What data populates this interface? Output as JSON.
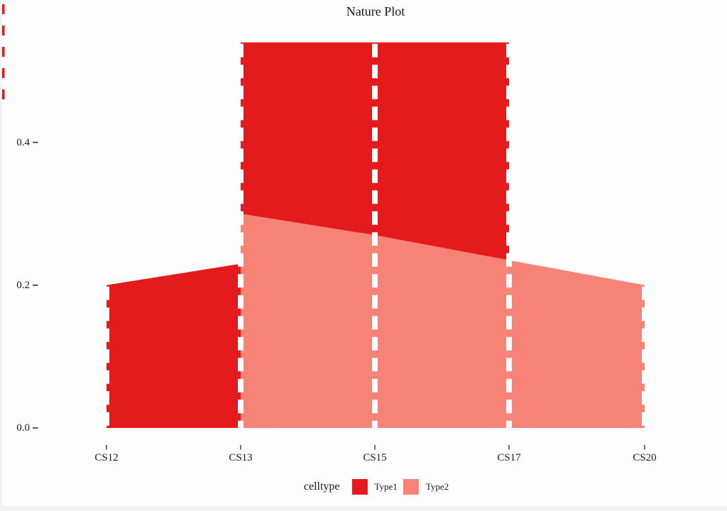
{
  "title": "Nature Plot",
  "colors": {
    "type1": "#E41A1C",
    "type2": "#F78276",
    "background": "#FDFDFD",
    "guide": "#FFFFFF",
    "axis_tick": "#333333",
    "text": "#1A1A1A"
  },
  "y_axis": {
    "tick_labels": [
      "0.0",
      "0.2",
      "0.4"
    ],
    "tick_values": [
      0,
      0.2,
      0.4
    ]
  },
  "x_axis": {
    "categories": [
      "CS12",
      "CS13",
      "CS15",
      "CS17",
      "CS20"
    ]
  },
  "legend": {
    "title": "celltype",
    "entries": [
      {
        "label": "Type1",
        "color": "#E41A1C"
      },
      {
        "label": "Type2",
        "color": "#F78276"
      }
    ]
  },
  "chart_data": {
    "type": "area",
    "title": "Nature Plot",
    "x_categories": [
      "CS12",
      "CS13",
      "CS15",
      "CS17",
      "CS20"
    ],
    "ylim": [
      0,
      0.54
    ],
    "y_ticks": [
      0,
      0.2,
      0.4
    ],
    "grid": false,
    "legend_position": "bottom",
    "series": [
      {
        "name": "Type1",
        "color": "#E41A1C",
        "segments": [
          {
            "x": [
              "CS12",
              "CS13"
            ],
            "top": [
              0.2,
              0.23
            ],
            "bottom": [
              0,
              0
            ]
          },
          {
            "x": [
              "CS13",
              "CS15",
              "CS17"
            ],
            "top": [
              0.54,
              0.54,
              0.54
            ],
            "bottom": [
              0.3,
              0.27,
              0.235
            ]
          }
        ]
      },
      {
        "name": "Type2",
        "color": "#F78276",
        "segments": [
          {
            "x": [
              "CS13",
              "CS15",
              "CS17",
              "CS20"
            ],
            "top": [
              0.3,
              0.27,
              0.235,
              0.2
            ],
            "bottom": [
              0,
              0,
              0,
              0
            ]
          }
        ]
      }
    ],
    "stage_guides": {
      "style": "dashed",
      "color": "#FFFFFF",
      "at": [
        "CS12",
        "CS13",
        "CS15",
        "CS17",
        "CS20"
      ]
    }
  }
}
